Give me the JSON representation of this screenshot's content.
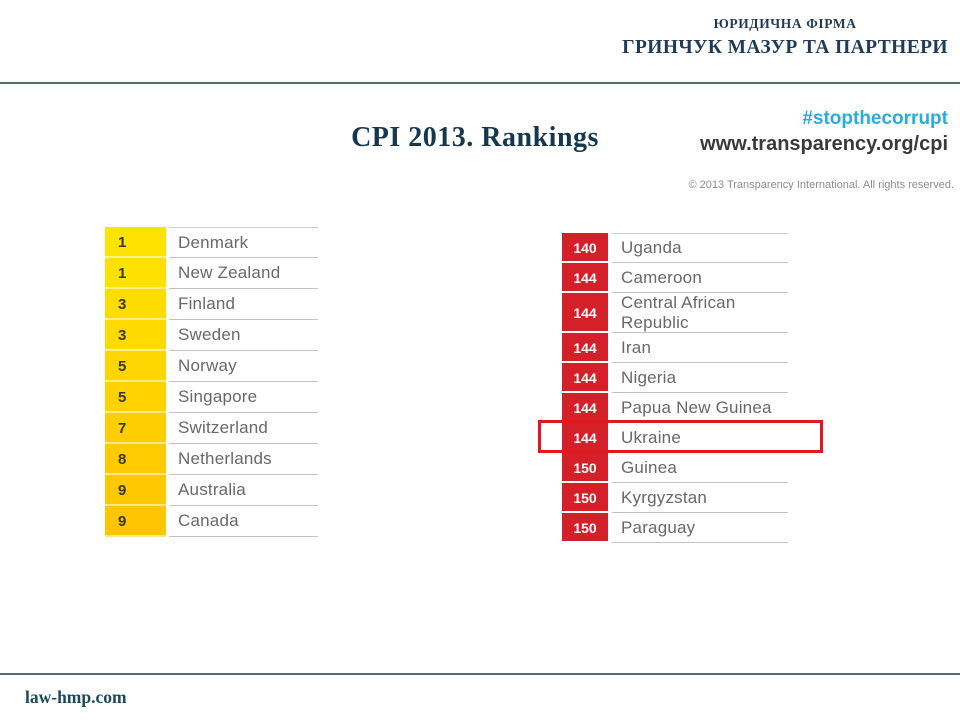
{
  "header": {
    "firm_type": "ЮРИДИЧНА ФІРМА",
    "firm_name": "ГРИНЧУК МАЗУР ТА ПАРТНЕРИ"
  },
  "title": "CPI 2013. Rankings",
  "campaign": {
    "hashtag": "#stopthecorrupt",
    "url": "www.transparency.org/cpi",
    "copyright": "© 2013 Transparency International. All rights reserved."
  },
  "footer": {
    "website": "law-hmp.com"
  },
  "colors": {
    "brand_navy": "#1F3B59",
    "title_navy": "#16384F",
    "rule_teal": "#4E6B78",
    "hashtag_cyan": "#29ABE2",
    "url_dark": "#3A3A3A",
    "copyright_gray": "#8C8C8C",
    "country_gray": "#67686B",
    "left_rank_text": "#3A372E",
    "right_rank_text": "#FFFFFF",
    "red_cell": "#D52029",
    "footer_teal": "#1B4A5C",
    "highlight_red": "#E2191C"
  },
  "top_table": {
    "rows": [
      {
        "rank": "1",
        "country": "Denmark",
        "color": "#FFE300"
      },
      {
        "rank": "1",
        "country": "New Zealand",
        "color": "#FFE000"
      },
      {
        "rank": "3",
        "country": "Finland",
        "color": "#FFDC00"
      },
      {
        "rank": "3",
        "country": "Sweden",
        "color": "#FFD900"
      },
      {
        "rank": "5",
        "country": "Norway",
        "color": "#FFD500"
      },
      {
        "rank": "5",
        "country": "Singapore",
        "color": "#FFD200"
      },
      {
        "rank": "7",
        "country": "Switzerland",
        "color": "#FFCE00"
      },
      {
        "rank": "8",
        "country": "Netherlands",
        "color": "#FFCB00"
      },
      {
        "rank": "9",
        "country": "Australia",
        "color": "#FFC800"
      },
      {
        "rank": "9",
        "country": "Canada",
        "color": "#FFC500"
      }
    ]
  },
  "bottom_table": {
    "rows": [
      {
        "rank": "140",
        "country": "Uganda",
        "color": "#D52029"
      },
      {
        "rank": "144",
        "country": "Cameroon",
        "color": "#D52029"
      },
      {
        "rank": "144",
        "country": "Central African Republic",
        "color": "#D52029"
      },
      {
        "rank": "144",
        "country": "Iran",
        "color": "#D52029"
      },
      {
        "rank": "144",
        "country": "Nigeria",
        "color": "#D52029"
      },
      {
        "rank": "144",
        "country": "Papua New Guinea",
        "color": "#D52029"
      },
      {
        "rank": "144",
        "country": "Ukraine",
        "color": "#D52029"
      },
      {
        "rank": "150",
        "country": "Guinea",
        "color": "#D52029"
      },
      {
        "rank": "150",
        "country": "Kyrgyzstan",
        "color": "#D52029"
      },
      {
        "rank": "150",
        "country": "Paraguay",
        "color": "#D52029"
      }
    ],
    "highlight": {
      "country": "Ukraine",
      "border_color": "#E2191C"
    }
  }
}
